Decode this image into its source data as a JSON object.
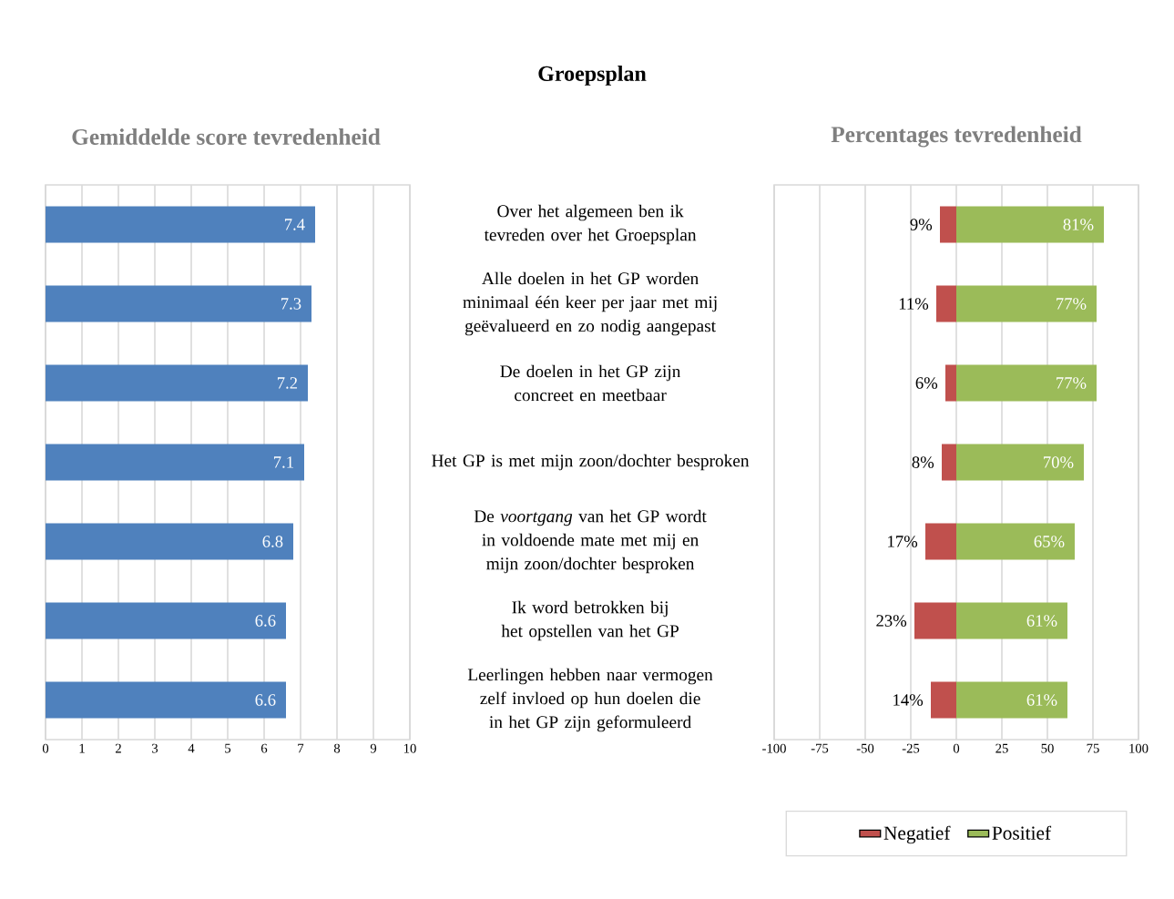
{
  "chart_data": [
    {
      "type": "bar",
      "orientation": "horizontal",
      "title": "Groepsplan",
      "subtitle": "Gemiddelde score tevredenheid",
      "categories": [
        "Over het algemeen ben ik tevreden over het Groepsplan",
        "Alle doelen in het GP worden minimaal één keer per jaar met mij geëvalueerd en zo nodig aangepast",
        "De doelen in het GP zijn concreet en meetbaar",
        "Het GP is met mijn zoon/dochter besproken",
        "De *voortgang* van het GP wordt in voldoende mate met mij en mijn zoon/dochter besproken",
        "Ik word betrokken bij het opstellen van het GP",
        "Leerlingen hebben naar vermogen zelf invloed op hun doelen die in het GP zijn geformuleerd"
      ],
      "values": [
        7.4,
        7.3,
        7.2,
        7.1,
        6.8,
        6.6,
        6.6
      ],
      "color": "#4f81bd",
      "data_labels": true,
      "xlim": [
        0,
        10
      ],
      "xticks": [
        0,
        1,
        2,
        3,
        4,
        5,
        6,
        7,
        8,
        9,
        10
      ],
      "grid": "x"
    },
    {
      "type": "bar",
      "orientation": "horizontal",
      "title": "Percentages tevredenheid",
      "categories": [
        null,
        null,
        null,
        null,
        null,
        null,
        null
      ],
      "series": [
        {
          "name": "Negatief",
          "color": "#c0504d",
          "base": [
            -9,
            -11,
            -6,
            -8,
            -17,
            -23,
            -14
          ],
          "values": [
            9,
            11,
            6,
            8,
            17,
            23,
            14
          ],
          "value_labels": [
            "9%",
            "11%",
            "6%",
            "8%",
            "17%",
            "23%",
            "14%"
          ]
        },
        {
          "name": "Positief",
          "color": "#9bbb59",
          "values": [
            81,
            77,
            77,
            70,
            65,
            61,
            61
          ],
          "value_labels": [
            "81%",
            "77%",
            "77%",
            "70%",
            "65%",
            "61%",
            "61%"
          ]
        }
      ],
      "xlim": [
        -100,
        100
      ],
      "xticks": [
        -100,
        -75,
        -50,
        -25,
        0,
        25,
        50,
        75,
        100
      ],
      "grid": "x",
      "tick_labels": "x",
      "legend": "bottom"
    }
  ]
}
